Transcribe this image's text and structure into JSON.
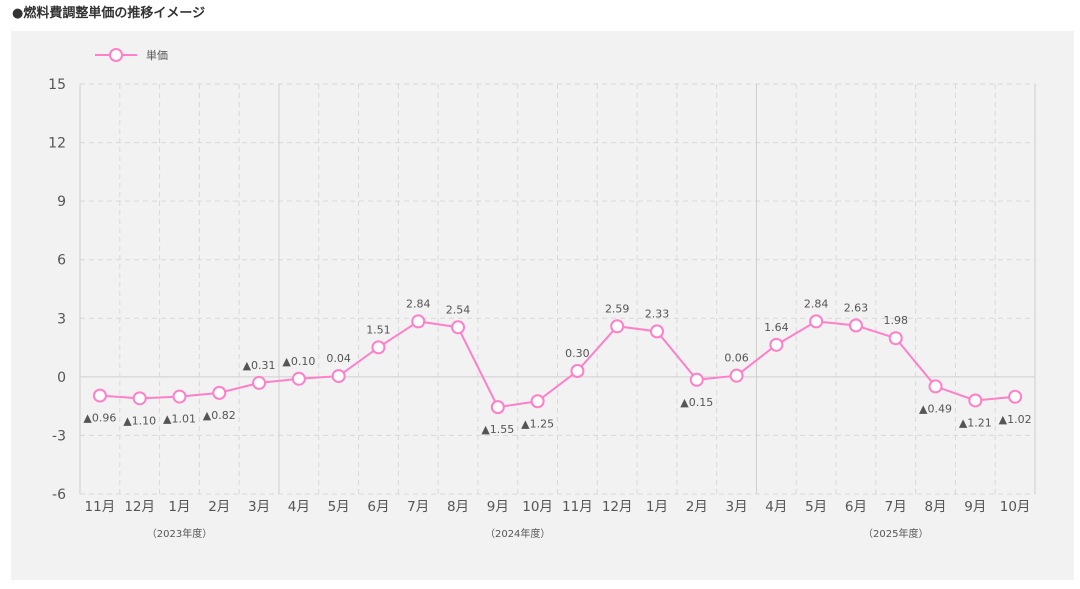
{
  "title": "●燃料費調整単価の推移イメージ",
  "colors": {
    "line": "#ff7fc8",
    "grid": "#d8d8d8",
    "panel": "#f2f2f2",
    "text": "#555555"
  },
  "chart_data": {
    "type": "line",
    "title": "",
    "xlabel": "",
    "ylabel": "",
    "categories": [
      "11月",
      "12月",
      "1月",
      "2月",
      "3月",
      "4月",
      "5月",
      "6月",
      "7月",
      "8月",
      "9月",
      "10月",
      "11月",
      "12月",
      "1月",
      "2月",
      "3月",
      "4月",
      "5月",
      "6月",
      "7月",
      "8月",
      "9月",
      "10月"
    ],
    "series": [
      {
        "name": "単価",
        "values": [
          -0.96,
          -1.1,
          -1.01,
          -0.82,
          -0.31,
          -0.1,
          0.04,
          1.51,
          2.84,
          2.54,
          -1.55,
          -1.25,
          0.3,
          2.59,
          2.33,
          -0.15,
          0.06,
          1.64,
          2.84,
          2.63,
          1.98,
          -0.49,
          -1.21,
          -1.02
        ],
        "labels": [
          "▲0.96",
          "▲1.10",
          "▲1.01",
          "▲0.82",
          "▲0.31",
          "▲0.10",
          "0.04",
          "1.51",
          "2.84",
          "2.54",
          "▲1.55",
          "▲1.25",
          "0.30",
          "2.59",
          "2.33",
          "▲0.15",
          "0.06",
          "1.64",
          "2.84",
          "2.63",
          "1.98",
          "▲0.49",
          "▲1.21",
          "▲1.02"
        ],
        "label_positions": [
          "below",
          "below",
          "below",
          "below",
          "above",
          "above",
          "above",
          "above",
          "above",
          "above",
          "below",
          "below",
          "above",
          "above",
          "above",
          "below",
          "above",
          "above",
          "above",
          "above",
          "above",
          "below",
          "below",
          "below"
        ]
      }
    ],
    "ylim": [
      -6,
      15
    ],
    "yticks": [
      -6,
      -3,
      0,
      3,
      6,
      9,
      12,
      15
    ],
    "grid": true,
    "legend": "top-left",
    "fiscal_year_groups": [
      {
        "label": "（2023年度）",
        "start": 0,
        "end": 4
      },
      {
        "label": "（2024年度）",
        "start": 5,
        "end": 16
      },
      {
        "label": "（2025年度）",
        "start": 17,
        "end": 23
      }
    ]
  }
}
